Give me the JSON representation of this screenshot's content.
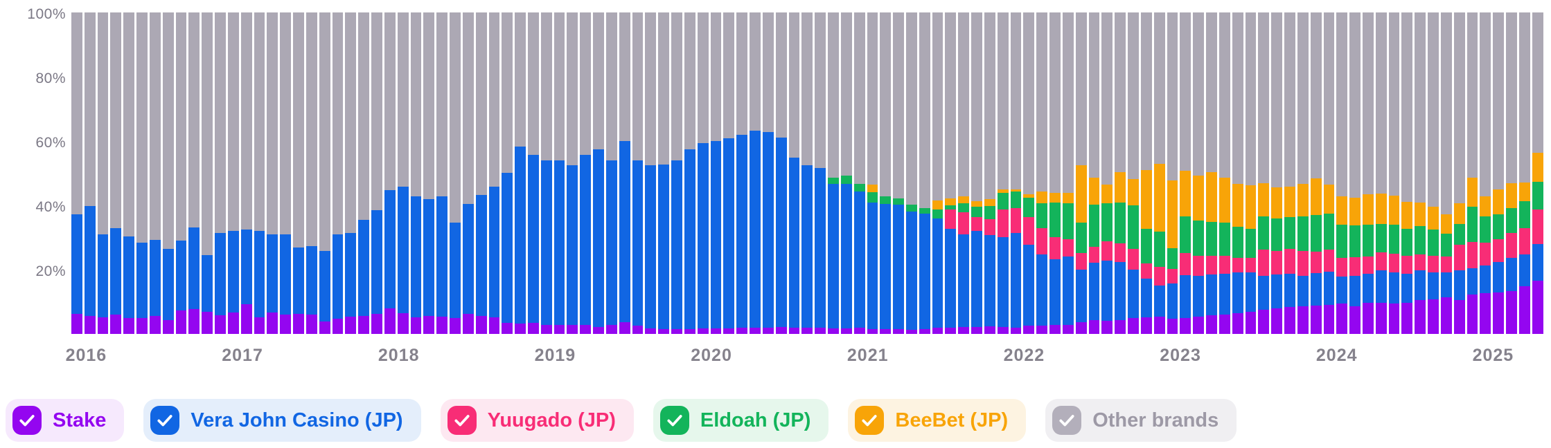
{
  "chart_data": {
    "type": "bar",
    "variant": "stacked-percent-column",
    "title": "",
    "xlabel": "",
    "ylabel": "",
    "ylim": [
      0,
      100
    ],
    "grid": false,
    "y_axis": {
      "ticks": [
        {
          "label": "100%",
          "value": 100
        },
        {
          "label": "80%",
          "value": 80
        },
        {
          "label": "60%",
          "value": 60
        },
        {
          "label": "40%",
          "value": 40
        },
        {
          "label": "20%",
          "value": 20
        }
      ]
    },
    "x_year_ticks": [
      {
        "label": "2016",
        "month_index": 0
      },
      {
        "label": "2017",
        "month_index": 12
      },
      {
        "label": "2018",
        "month_index": 24
      },
      {
        "label": "2019",
        "month_index": 36
      },
      {
        "label": "2020",
        "month_index": 48
      },
      {
        "label": "2021",
        "month_index": 60
      },
      {
        "label": "2022",
        "month_index": 72
      },
      {
        "label": "2023",
        "month_index": 84
      },
      {
        "label": "2024",
        "month_index": 96
      },
      {
        "label": "2025",
        "month_index": 108
      }
    ],
    "x": [
      "2016-01",
      "2016-02",
      "2016-03",
      "2016-04",
      "2016-05",
      "2016-06",
      "2016-07",
      "2016-08",
      "2016-09",
      "2016-10",
      "2016-11",
      "2016-12",
      "2017-01",
      "2017-02",
      "2017-03",
      "2017-04",
      "2017-05",
      "2017-06",
      "2017-07",
      "2017-08",
      "2017-09",
      "2017-10",
      "2017-11",
      "2017-12",
      "2018-01",
      "2018-02",
      "2018-03",
      "2018-04",
      "2018-05",
      "2018-06",
      "2018-07",
      "2018-08",
      "2018-09",
      "2018-10",
      "2018-11",
      "2018-12",
      "2019-01",
      "2019-02",
      "2019-03",
      "2019-04",
      "2019-05",
      "2019-06",
      "2019-07",
      "2019-08",
      "2019-09",
      "2019-10",
      "2019-11",
      "2019-12",
      "2020-01",
      "2020-02",
      "2020-03",
      "2020-04",
      "2020-05",
      "2020-06",
      "2020-07",
      "2020-08",
      "2020-09",
      "2020-10",
      "2020-11",
      "2020-12",
      "2021-01",
      "2021-02",
      "2021-03",
      "2021-04",
      "2021-05",
      "2021-06",
      "2021-07",
      "2021-08",
      "2021-09",
      "2021-10",
      "2021-11",
      "2021-12",
      "2022-01",
      "2022-02",
      "2022-03",
      "2022-04",
      "2022-05",
      "2022-06",
      "2022-07",
      "2022-08",
      "2022-09",
      "2022-10",
      "2022-11",
      "2022-12",
      "2023-01",
      "2023-02",
      "2023-03",
      "2023-04",
      "2023-05",
      "2023-06",
      "2023-07",
      "2023-08",
      "2023-09",
      "2023-10",
      "2023-11",
      "2023-12",
      "2024-01",
      "2024-02",
      "2024-03",
      "2024-04",
      "2024-05",
      "2024-06",
      "2024-07",
      "2024-08",
      "2024-09",
      "2024-10",
      "2024-11",
      "2024-12",
      "2025-01",
      "2025-02",
      "2025-03",
      "2025-04",
      "2025-05"
    ],
    "series": [
      {
        "name": "Stake",
        "color": "#9406f0",
        "values": [
          6.2,
          5.6,
          5.2,
          6,
          4.9,
          4.9,
          5.6,
          4.3,
          7.3,
          7.7,
          6.9,
          5.8,
          6.7,
          9.2,
          5.2,
          6.7,
          6,
          6.2,
          6,
          3.9,
          4.7,
          5.4,
          5.6,
          6.3,
          8,
          6.5,
          5.1,
          5.6,
          5.3,
          4.9,
          6.2,
          5.6,
          5.1,
          3.4,
          3.3,
          3.4,
          2.9,
          2.9,
          2.7,
          2.7,
          2.2,
          2.9,
          3.7,
          2.6,
          1.7,
          1.5,
          1.6,
          1.6,
          1.7,
          1.8,
          1.8,
          1.9,
          2,
          2,
          2.2,
          2,
          1.9,
          1.9,
          1.7,
          1.7,
          1.9,
          1.5,
          1.5,
          1.5,
          1.3,
          1.5,
          1.9,
          2,
          2.2,
          2.2,
          2.4,
          2.2,
          2,
          2.6,
          2.6,
          2.7,
          2.9,
          3.7,
          4.4,
          4,
          4.4,
          4.9,
          5.1,
          5.4,
          4.7,
          5,
          5.4,
          5.8,
          6,
          6.5,
          6.9,
          7.6,
          8,
          8.3,
          8.7,
          8.8,
          9,
          9.4,
          8.7,
          9.7,
          9.7,
          9.4,
          9.7,
          10.5,
          10.8,
          11.5,
          10.5,
          12.3,
          12.6,
          13,
          13.3,
          14.8,
          16.6
        ]
      },
      {
        "name": "Vera John Casino (JP)",
        "color": "#1166e3",
        "values": [
          31,
          34.2,
          25.8,
          26.9,
          25.4,
          23.5,
          23.6,
          22.2,
          21.7,
          25.4,
          17.6,
          25.6,
          25.3,
          23.3,
          26.8,
          24.3,
          25,
          20.7,
          21.3,
          21.9,
          26.3,
          26,
          29.9,
          32.3,
          36.7,
          39.4,
          37.8,
          36.3,
          37.6,
          29.8,
          34.2,
          37.7,
          40.8,
          46.7,
          55,
          52.2,
          51.1,
          51.1,
          49.8,
          53.1,
          55.2,
          51.1,
          56.2,
          51.4,
          50.8,
          51.2,
          52.4,
          55.8,
          57.7,
          58.2,
          59,
          60,
          61.3,
          60.8,
          58.9,
          52.9,
          50.5,
          49.8,
          45,
          45,
          42.3,
          39.4,
          38.9,
          38.7,
          36.8,
          36,
          34,
          30.7,
          28.7,
          29.8,
          28.3,
          28,
          29.4,
          25.1,
          22.2,
          20.5,
          21.2,
          16.4,
          17.7,
          18.8,
          17.9,
          15.2,
          12.2,
          9.7,
          11.1,
          13.3,
          12.6,
          12.6,
          12.7,
          12.6,
          12.2,
          10.4,
          10.4,
          10.4,
          9.3,
          10.2,
          10.4,
          8.4,
          9.3,
          9,
          10.1,
          9.7,
          9,
          9.3,
          8.3,
          7.6,
          9.3,
          8.2,
          8.6,
          9.3,
          10.4,
          10,
          11.4
        ]
      },
      {
        "name": "Yuugado (JP)",
        "color": "#f82d76",
        "values": [
          0,
          0,
          0,
          0,
          0,
          0,
          0,
          0,
          0,
          0,
          0,
          0,
          0,
          0,
          0,
          0,
          0,
          0,
          0,
          0,
          0,
          0,
          0,
          0,
          0,
          0,
          0,
          0,
          0,
          0,
          0,
          0,
          0,
          0,
          0,
          0,
          0,
          0,
          0,
          0,
          0,
          0,
          0,
          0,
          0,
          0,
          0,
          0,
          0,
          0,
          0,
          0,
          0,
          0,
          0,
          0,
          0,
          0,
          0,
          0,
          0,
          0,
          0,
          0,
          0,
          0,
          0,
          5.9,
          7,
          4.3,
          5,
          8.6,
          7.7,
          8.6,
          8,
          7,
          5.4,
          5.1,
          4.9,
          6,
          5.9,
          6.3,
          4.6,
          5.8,
          4.5,
          6.8,
          6.4,
          6,
          5.5,
          4.6,
          4.6,
          8.2,
          7.5,
          7.7,
          7.7,
          6.5,
          6.9,
          5.9,
          5.9,
          5.3,
          5.5,
          5.8,
          5.5,
          4.9,
          5.3,
          5,
          7.9,
          8.2,
          7.2,
          7.2,
          7.6,
          8.2,
          10.8
        ]
      },
      {
        "name": "Eldoah (JP)",
        "color": "#13b45b",
        "values": [
          0,
          0,
          0,
          0,
          0,
          0,
          0,
          0,
          0,
          0,
          0,
          0,
          0,
          0,
          0,
          0,
          0,
          0,
          0,
          0,
          0,
          0,
          0,
          0,
          0,
          0,
          0,
          0,
          0,
          0,
          0,
          0,
          0,
          0,
          0,
          0,
          0,
          0,
          0,
          0,
          0,
          0,
          0,
          0,
          0,
          0,
          0,
          0,
          0,
          0,
          0,
          0,
          0,
          0,
          0,
          0,
          0,
          0,
          1.8,
          2.6,
          2.5,
          3.1,
          2.5,
          1.9,
          2.1,
          1.6,
          2.7,
          1.3,
          2.7,
          3.2,
          4,
          5,
          5.2,
          6.1,
          7.9,
          10.7,
          11.2,
          9.4,
          13.2,
          11.8,
          12.7,
          13.6,
          10.8,
          10.9,
          6.3,
          11.5,
          10.8,
          10.4,
          10.5,
          9.7,
          9,
          10.4,
          10,
          9.9,
          10.9,
          11.5,
          11.1,
          10.3,
          9.9,
          10,
          8.8,
          9.1,
          8.4,
          8.8,
          8,
          7,
          6.4,
          10.8,
          8.2,
          7.8,
          7.8,
          8.3,
          8.6
        ]
      },
      {
        "name": "BeeBet (JP)",
        "color": "#f8a408",
        "values": [
          0,
          0,
          0,
          0,
          0,
          0,
          0,
          0,
          0,
          0,
          0,
          0,
          0,
          0,
          0,
          0,
          0,
          0,
          0,
          0,
          0,
          0,
          0,
          0,
          0,
          0,
          0,
          0,
          0,
          0,
          0,
          0,
          0,
          0,
          0,
          0,
          0,
          0,
          0,
          0,
          0,
          0,
          0,
          0,
          0,
          0,
          0,
          0,
          0,
          0,
          0,
          0,
          0,
          0,
          0,
          0,
          0,
          0,
          0,
          0,
          0,
          2.5,
          0,
          0,
          0,
          0,
          3,
          2.2,
          2.1,
          1.8,
          2.2,
          1.2,
          0.6,
          1,
          3.6,
          2.9,
          3.2,
          17.9,
          8.4,
          5.9,
          9.4,
          8.1,
          18.3,
          21.1,
          21.1,
          14.1,
          14,
          15.5,
          13.9,
          13.3,
          13.6,
          10.3,
          9.7,
          9.4,
          10.1,
          11.3,
          9.1,
          8.7,
          8.6,
          9.4,
          9.5,
          9.1,
          8.5,
          7.4,
          7.1,
          6.2,
          6.5,
          9.1,
          6.1,
          7.7,
          7.8,
          5.9,
          8.9
        ]
      },
      {
        "name": "Other brands",
        "color": "#aca8b4",
        "remainder": true
      }
    ]
  },
  "legend": {
    "items": [
      {
        "label": "Stake",
        "color": "#9406f0",
        "bg": "#f6e9fd",
        "checked": true
      },
      {
        "label": "Vera John Casino (JP)",
        "color": "#1166e3",
        "bg": "#e4eefb",
        "checked": true
      },
      {
        "label": "Yuugado (JP)",
        "color": "#f82d76",
        "bg": "#fde8f1",
        "checked": true
      },
      {
        "label": "Eldoah (JP)",
        "color": "#13b45b",
        "bg": "#e6f7ec",
        "checked": true
      },
      {
        "label": "BeeBet (JP)",
        "color": "#f8a408",
        "bg": "#fdf3e1",
        "checked": true
      },
      {
        "label": "Other brands",
        "color": "#9d99a6",
        "bg": "#f0eff2",
        "checked": true,
        "check_color": "#b3afbb"
      }
    ]
  }
}
